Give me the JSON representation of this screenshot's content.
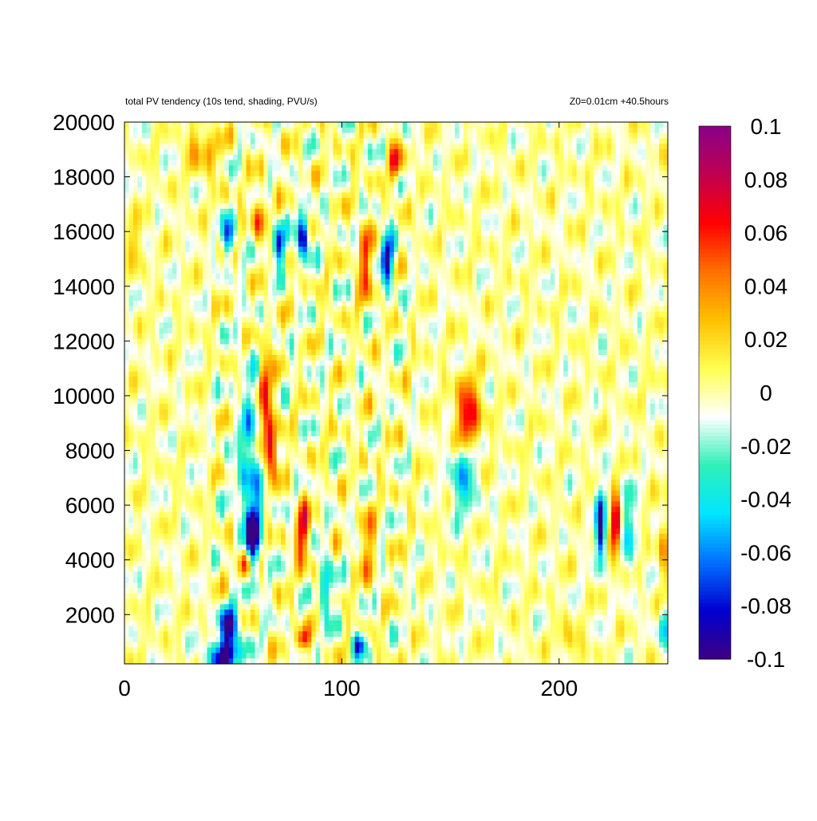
{
  "chart_data": {
    "type": "heatmap",
    "title": "total PV tendency (10s tend, shading, PVU/s)",
    "subtitle": "Z0=0.01cm   +40.5hours",
    "xlabel": "",
    "ylabel": "",
    "xlim": [
      0,
      250
    ],
    "ylim": [
      200,
      20000
    ],
    "xticks": [
      "0",
      "100",
      "200"
    ],
    "xtick_values": [
      0,
      100,
      200
    ],
    "yticks": [
      "2000",
      "4000",
      "6000",
      "8000",
      "10000",
      "12000",
      "14000",
      "16000",
      "18000",
      "20000"
    ],
    "ytick_values": [
      2000,
      4000,
      6000,
      8000,
      10000,
      12000,
      14000,
      16000,
      18000,
      20000
    ],
    "colorbar": {
      "range": [
        -0.1,
        0.1
      ],
      "tick_labels": [
        "0.1",
        "0.08",
        "0.06",
        "0.04",
        "0.02",
        "0",
        "-0.02",
        "-0.04",
        "-0.06",
        "-0.08",
        "-0.1"
      ],
      "tick_values": [
        0.1,
        0.08,
        0.06,
        0.04,
        0.02,
        0,
        -0.02,
        -0.04,
        -0.06,
        -0.08,
        -0.1
      ],
      "colors": [
        "#3b0082",
        "#0000d0",
        "#0070ff",
        "#00e6ff",
        "#30f0b8",
        "#ffffff",
        "#ffff50",
        "#ffc000",
        "#ff7000",
        "#ff0000",
        "#c00050",
        "#880088"
      ]
    },
    "grid": false,
    "features": [
      {
        "x": 46,
        "y": 500,
        "v": -0.1,
        "sx": 5,
        "sy": 400
      },
      {
        "x": 48,
        "y": 1600,
        "v": -0.09,
        "sx": 3,
        "sy": 500
      },
      {
        "x": 55,
        "y": 3800,
        "v": 0.07,
        "sx": 2,
        "sy": 400
      },
      {
        "x": 59,
        "y": 5000,
        "v": -0.09,
        "sx": 2,
        "sy": 700
      },
      {
        "x": 58,
        "y": 7000,
        "v": -0.05,
        "sx": 4,
        "sy": 2500
      },
      {
        "x": 67,
        "y": 8000,
        "v": 0.07,
        "sx": 2.5,
        "sy": 700
      },
      {
        "x": 65,
        "y": 10000,
        "v": 0.06,
        "sx": 2.5,
        "sy": 1200
      },
      {
        "x": 82,
        "y": 5000,
        "v": 0.07,
        "sx": 2,
        "sy": 800
      },
      {
        "x": 82,
        "y": 15800,
        "v": -0.1,
        "sx": 2,
        "sy": 500
      },
      {
        "x": 71,
        "y": 15500,
        "v": -0.08,
        "sx": 2,
        "sy": 500
      },
      {
        "x": 48,
        "y": 15800,
        "v": -0.07,
        "sx": 2,
        "sy": 500
      },
      {
        "x": 62,
        "y": 16500,
        "v": 0.05,
        "sx": 2,
        "sy": 600
      },
      {
        "x": 121,
        "y": 15000,
        "v": -0.09,
        "sx": 2,
        "sy": 700
      },
      {
        "x": 111,
        "y": 14800,
        "v": 0.05,
        "sx": 2.5,
        "sy": 1000
      },
      {
        "x": 125,
        "y": 18500,
        "v": 0.06,
        "sx": 2,
        "sy": 500
      },
      {
        "x": 158,
        "y": 9300,
        "v": 0.07,
        "sx": 4,
        "sy": 900
      },
      {
        "x": 156,
        "y": 7000,
        "v": -0.05,
        "sx": 4,
        "sy": 900
      },
      {
        "x": 219,
        "y": 5200,
        "v": -0.1,
        "sx": 1.5,
        "sy": 900
      },
      {
        "x": 226,
        "y": 5200,
        "v": 0.08,
        "sx": 1.5,
        "sy": 900
      },
      {
        "x": 232,
        "y": 5200,
        "v": -0.04,
        "sx": 2,
        "sy": 1200
      },
      {
        "x": 82,
        "y": 1100,
        "v": 0.07,
        "sx": 2,
        "sy": 300
      },
      {
        "x": 108,
        "y": 900,
        "v": -0.08,
        "sx": 2,
        "sy": 300
      },
      {
        "x": 112,
        "y": 4500,
        "v": 0.04,
        "sx": 2,
        "sy": 1000
      },
      {
        "x": 93,
        "y": 3000,
        "v": -0.05,
        "sx": 2,
        "sy": 900
      },
      {
        "x": 33,
        "y": 19000,
        "v": 0.03,
        "sx": 3,
        "sy": 600
      },
      {
        "x": 40,
        "y": 19000,
        "v": 0.03,
        "sx": 2.5,
        "sy": 600
      },
      {
        "x": 5,
        "y": 15500,
        "v": 0.03,
        "sx": 2,
        "sy": 600
      },
      {
        "x": 248,
        "y": 4500,
        "v": 0.03,
        "sx": 2,
        "sy": 900
      },
      {
        "x": 248,
        "y": 1500,
        "v": -0.04,
        "sx": 2,
        "sy": 500
      },
      {
        "x": 205,
        "y": 1000,
        "v": 0.03,
        "sx": 3,
        "sy": 400
      }
    ]
  }
}
